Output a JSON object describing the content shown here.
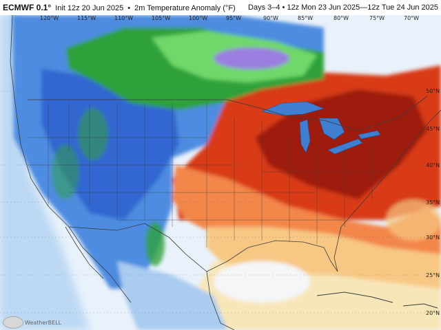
{
  "header": {
    "model": "ECMWF 0.1°",
    "init": "Init 12z 20 Jun 2025",
    "field": "2m Temperature Anomaly (°F)",
    "valid": "Days 3–4 • 12z Mon 23 Jun 2025—12z Tue 24 Jun 2025"
  },
  "longitude_labels": [
    "120°W",
    "115°W",
    "110°W",
    "105°W",
    "100°W",
    "95°W",
    "90°W",
    "85°W",
    "80°W",
    "75°W",
    "70°W"
  ],
  "latitude_labels": [
    "50°N",
    "45°N",
    "40°N",
    "35°N",
    "30°N",
    "25°N",
    "20°N"
  ],
  "watermark": "WeatherBELL",
  "colors": {
    "ocean": "#e9f2fb",
    "strong_warm": "#9e1c0c",
    "warm": "#d83a16",
    "mild_warm": "#f3864a",
    "slight_warm": "#f7c883",
    "near_normal_warm": "#fbe3a8",
    "near_normal": "#f4f6f8",
    "slight_cool": "#a9ccf0",
    "cool": "#4d8ce0",
    "cooler": "#2f5fcc",
    "cold_green": "#2fa13a",
    "colder_lightgreen": "#6fd86b",
    "coldest_purple": "#9a7fe0",
    "borders": "#3a3a3a",
    "lakes": "#3e7fd1"
  }
}
